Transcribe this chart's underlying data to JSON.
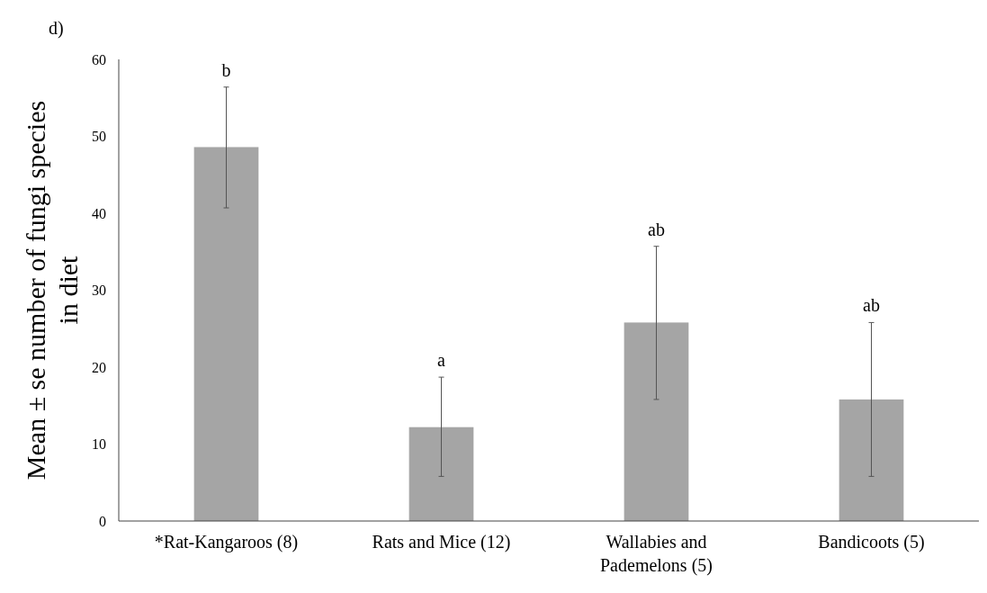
{
  "chart_data": {
    "type": "bar",
    "title": "d)",
    "ylabel": "Mean ± se number of fungi species in diet",
    "categories": [
      "*Rat-Kangaroos (8)",
      "Rats and Mice (12)",
      "Wallabies and Pademelons (5)",
      "Bandicoots (5)"
    ],
    "values": [
      48.6,
      12.2,
      25.8,
      15.8
    ],
    "errors": [
      [
        40.7,
        56.4
      ],
      [
        5.8,
        18.7
      ],
      [
        15.8,
        35.7
      ],
      [
        5.8,
        25.8
      ]
    ],
    "color": "#a5a5a5",
    "ylim": [
      0,
      60
    ],
    "yticks": [
      0,
      10,
      20,
      30,
      40,
      50,
      60
    ],
    "grid": false,
    "annotations": [
      {
        "text": "b",
        "x": "*Rat-Kangaroos (8)",
        "y": 56.4
      },
      {
        "text": "a",
        "x": "Rats and Mice (12)",
        "y": 18.7
      },
      {
        "text": "ab",
        "x": "Wallabies and Pademelons (5)",
        "y": 35.7
      },
      {
        "text": "ab",
        "x": "Bandicoots (5)",
        "y": 25.8
      }
    ]
  }
}
